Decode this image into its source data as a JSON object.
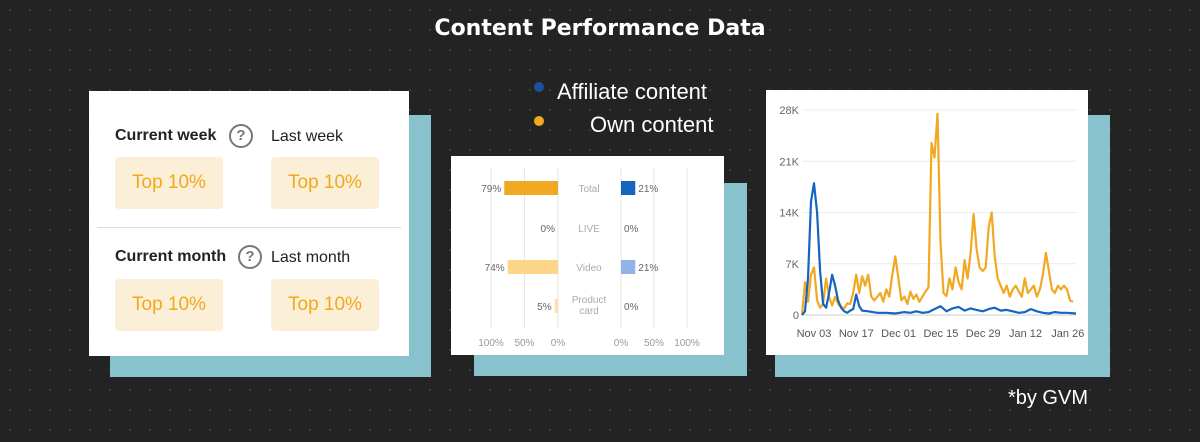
{
  "title": "Content Performance Data",
  "rank_card": {
    "current_week_label": "Current week",
    "last_week_label": "Last week",
    "current_month_label": "Current month",
    "last_month_label": "Last month",
    "help_glyph": "?",
    "current_week_value": "Top 10%",
    "last_week_value": "Top 10%",
    "current_month_value": "Top 10%",
    "last_month_value": "Top 10%"
  },
  "legend": {
    "affiliate_label": "Affiliate content",
    "own_label": "Own content",
    "affiliate_color": "#1c4f9c",
    "own_color": "#f1a823"
  },
  "footnote": "*by GVM",
  "chart_data": [
    {
      "type": "bar",
      "orientation": "horizontal-diverging",
      "categories": [
        "Total",
        "LIVE",
        "Video",
        "Product card"
      ],
      "series": [
        {
          "name": "Own content",
          "values": [
            79,
            0,
            74,
            5
          ],
          "labels": [
            "79%",
            "0%",
            "74%",
            "5%"
          ],
          "colors": [
            "#f1a823",
            "#f1a823",
            "#fdd589",
            "#fde2b0"
          ]
        },
        {
          "name": "Affiliate content",
          "values": [
            21,
            0,
            21,
            0
          ],
          "labels": [
            "21%",
            "0%",
            "21%",
            "0%"
          ],
          "colors": [
            "#1565c0",
            "#1565c0",
            "#90b4e6",
            "#c5d7f2"
          ]
        }
      ],
      "left_ticks": [
        "100%",
        "50%",
        "0%"
      ],
      "right_ticks": [
        "0%",
        "50%",
        "100%"
      ],
      "xlim": [
        0,
        100
      ],
      "grid": true
    },
    {
      "type": "line",
      "x_ticks": [
        "Nov 03",
        "Nov 17",
        "Dec 01",
        "Dec 15",
        "Dec 29",
        "Jan 12",
        "Jan 26"
      ],
      "y_ticks": [
        "0",
        "7K",
        "14K",
        "21K",
        "28K"
      ],
      "ylim": [
        0,
        28000
      ],
      "x_days": [
        0,
        91
      ],
      "grid": true,
      "series": [
        {
          "name": "Affiliate content",
          "color": "#1565c0",
          "points": [
            [
              0,
              0
            ],
            [
              1,
              500
            ],
            [
              2,
              5000
            ],
            [
              3,
              15500
            ],
            [
              4,
              18000
            ],
            [
              5,
              14000
            ],
            [
              6,
              6000
            ],
            [
              7,
              1500
            ],
            [
              8,
              1000
            ],
            [
              9,
              3000
            ],
            [
              10,
              5500
            ],
            [
              11,
              4000
            ],
            [
              12,
              2000
            ],
            [
              13,
              1000
            ],
            [
              14,
              500
            ],
            [
              15,
              300
            ],
            [
              16,
              600
            ],
            [
              17,
              800
            ],
            [
              18,
              2800
            ],
            [
              19,
              1200
            ],
            [
              20,
              600
            ],
            [
              22,
              500
            ],
            [
              25,
              300
            ],
            [
              28,
              300
            ],
            [
              31,
              200
            ],
            [
              34,
              400
            ],
            [
              36,
              300
            ],
            [
              38,
              500
            ],
            [
              40,
              300
            ],
            [
              42,
              400
            ],
            [
              44,
              800
            ],
            [
              46,
              1200
            ],
            [
              48,
              500
            ],
            [
              50,
              900
            ],
            [
              52,
              1100
            ],
            [
              54,
              600
            ],
            [
              56,
              900
            ],
            [
              58,
              700
            ],
            [
              60,
              500
            ],
            [
              62,
              800
            ],
            [
              64,
              1000
            ],
            [
              66,
              600
            ],
            [
              68,
              700
            ],
            [
              70,
              500
            ],
            [
              72,
              300
            ],
            [
              74,
              400
            ],
            [
              76,
              800
            ],
            [
              78,
              500
            ],
            [
              80,
              300
            ],
            [
              82,
              200
            ],
            [
              84,
              400
            ],
            [
              86,
              300
            ],
            [
              88,
              300
            ],
            [
              91,
              200
            ]
          ]
        },
        {
          "name": "Own content",
          "color": "#f1a823",
          "points": [
            [
              0,
              0
            ],
            [
              1,
              4500
            ],
            [
              2,
              1800
            ],
            [
              3,
              5500
            ],
            [
              4,
              6500
            ],
            [
              5,
              2000
            ],
            [
              6,
              1000
            ],
            [
              7,
              1500
            ],
            [
              8,
              5000
            ],
            [
              9,
              2500
            ],
            [
              10,
              1300
            ],
            [
              11,
              2500
            ],
            [
              12,
              1500
            ],
            [
              13,
              1100
            ],
            [
              14,
              900
            ],
            [
              15,
              1600
            ],
            [
              16,
              1500
            ],
            [
              17,
              3000
            ],
            [
              18,
              5500
            ],
            [
              19,
              3000
            ],
            [
              20,
              5300
            ],
            [
              21,
              4000
            ],
            [
              22,
              5500
            ],
            [
              23,
              2500
            ],
            [
              24,
              2000
            ],
            [
              25,
              2500
            ],
            [
              26,
              3000
            ],
            [
              27,
              1800
            ],
            [
              28,
              3500
            ],
            [
              29,
              2500
            ],
            [
              30,
              5500
            ],
            [
              31,
              8000
            ],
            [
              32,
              5000
            ],
            [
              33,
              2000
            ],
            [
              34,
              2500
            ],
            [
              35,
              1500
            ],
            [
              36,
              3200
            ],
            [
              37,
              2200
            ],
            [
              38,
              2800
            ],
            [
              39,
              1800
            ],
            [
              40,
              2500
            ],
            [
              41,
              3200
            ],
            [
              42,
              3800
            ],
            [
              43,
              23500
            ],
            [
              44,
              21500
            ],
            [
              45,
              27500
            ],
            [
              46,
              10000
            ],
            [
              47,
              3000
            ],
            [
              48,
              2600
            ],
            [
              49,
              5000
            ],
            [
              50,
              3500
            ],
            [
              51,
              6500
            ],
            [
              52,
              4500
            ],
            [
              53,
              3500
            ],
            [
              54,
              7500
            ],
            [
              55,
              5000
            ],
            [
              56,
              8500
            ],
            [
              57,
              13800
            ],
            [
              58,
              9000
            ],
            [
              59,
              6500
            ],
            [
              60,
              6000
            ],
            [
              61,
              6500
            ],
            [
              62,
              12000
            ],
            [
              63,
              14000
            ],
            [
              64,
              8000
            ],
            [
              65,
              5000
            ],
            [
              66,
              4000
            ],
            [
              67,
              3000
            ],
            [
              68,
              4000
            ],
            [
              69,
              2500
            ],
            [
              70,
              3500
            ],
            [
              71,
              4000
            ],
            [
              72,
              3200
            ],
            [
              73,
              2500
            ],
            [
              74,
              5000
            ],
            [
              75,
              3000
            ],
            [
              76,
              3500
            ],
            [
              77,
              4000
            ],
            [
              78,
              2500
            ],
            [
              79,
              3500
            ],
            [
              80,
              5500
            ],
            [
              81,
              8500
            ],
            [
              82,
              6000
            ],
            [
              83,
              3500
            ],
            [
              84,
              3000
            ],
            [
              85,
              4000
            ],
            [
              86,
              3500
            ],
            [
              87,
              4000
            ],
            [
              88,
              3500
            ],
            [
              89,
              2000
            ],
            [
              90,
              1800
            ]
          ]
        }
      ]
    }
  ]
}
